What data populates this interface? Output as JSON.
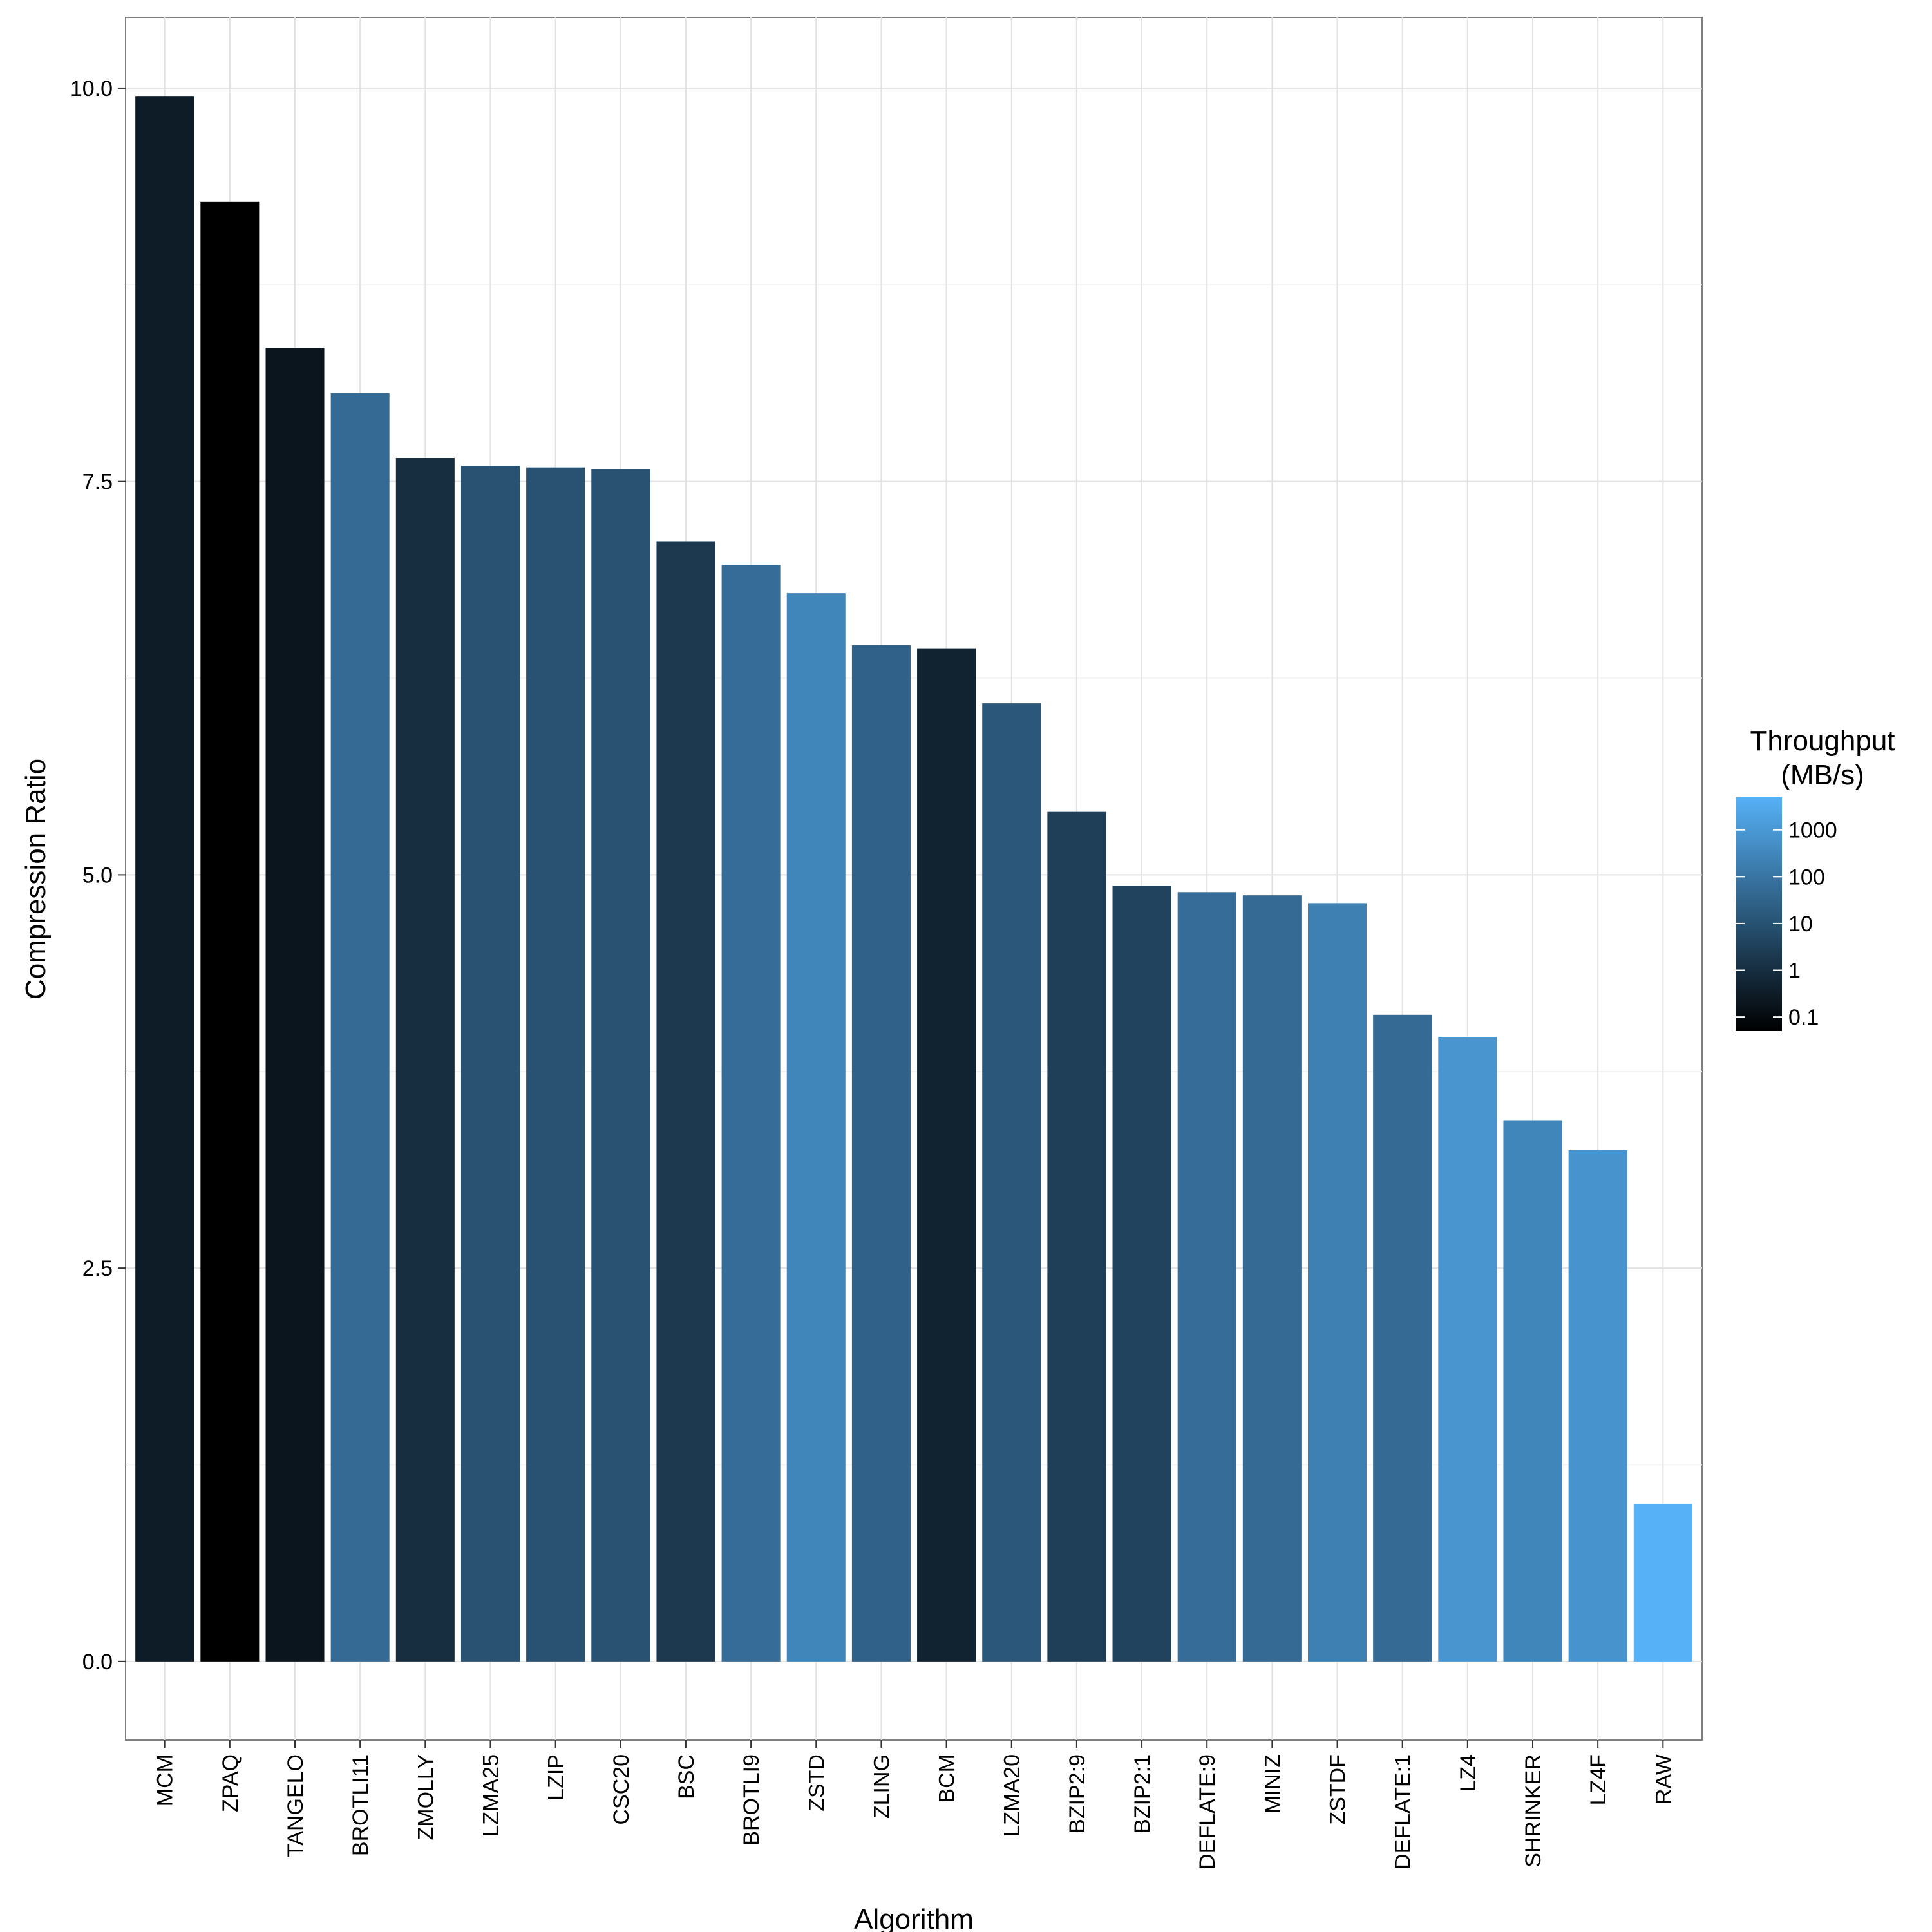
{
  "chart_data": {
    "type": "bar",
    "xlabel": "Algorithm",
    "ylabel": "Compression Ratio",
    "ylim": [
      -0.5,
      10.45
    ],
    "yticks": [
      0.0,
      2.5,
      5.0,
      7.5,
      10.0
    ],
    "ytick_labels": [
      "0.0",
      "2.5",
      "5.0",
      "7.5",
      "10.0"
    ],
    "grid": true,
    "categories": [
      "MCM",
      "ZPAQ",
      "TANGELO",
      "BROTLI11",
      "ZMOLLY",
      "LZMA25",
      "LZIP",
      "CSC20",
      "BSC",
      "BROTLI9",
      "ZSTD",
      "ZLING",
      "BCM",
      "LZMA20",
      "BZIP2:9",
      "BZIP2:1",
      "DEFLATE:9",
      "MINIZ",
      "ZSTDF",
      "DEFLATE:1",
      "LZ4",
      "SHRINKER",
      "LZ4F",
      "RAW"
    ],
    "values": [
      9.95,
      9.28,
      8.35,
      8.06,
      7.65,
      7.6,
      7.59,
      7.58,
      7.12,
      6.97,
      6.79,
      6.46,
      6.44,
      6.09,
      5.4,
      4.93,
      4.89,
      4.87,
      4.82,
      4.11,
      3.97,
      3.44,
      3.25,
      1.0
    ],
    "throughput": [
      0.3,
      0.05,
      0.2,
      50,
      1,
      10,
      10,
      10,
      2,
      60,
      300,
      30,
      0.5,
      15,
      3,
      4,
      60,
      50,
      200,
      50,
      800,
      300,
      700,
      5000
    ],
    "legend": {
      "title_lines": [
        "Throughput",
        "(MB/s)"
      ],
      "position": "right",
      "scale": "log",
      "breaks": [
        0.1,
        1,
        10,
        100,
        1000
      ],
      "break_labels": [
        "0.1",
        "1",
        "10",
        "100",
        "1000"
      ],
      "range": [
        0.05,
        5000
      ],
      "color_low": "#000000",
      "color_high": "#56B1F7"
    }
  }
}
